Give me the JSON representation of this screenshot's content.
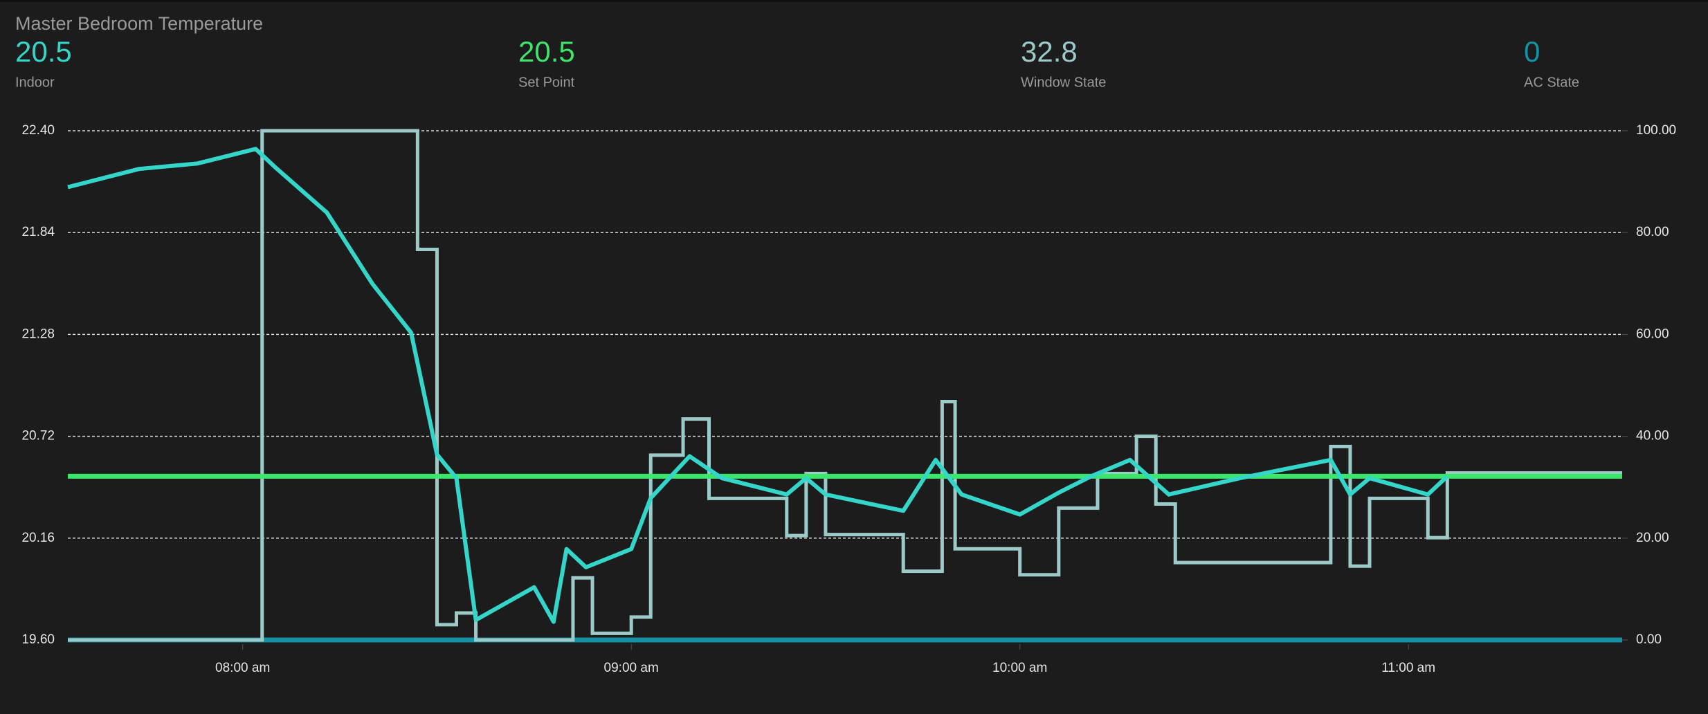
{
  "chart_data": {
    "type": "line",
    "title": "Master Bedroom Temperature",
    "xlim": [
      453,
      693
    ],
    "xticks": [
      {
        "value": 480,
        "label": "08:00 am"
      },
      {
        "value": 540,
        "label": "09:00 am"
      },
      {
        "value": 600,
        "label": "10:00 am"
      },
      {
        "value": 660,
        "label": "11:00 am"
      }
    ],
    "ylim": [
      19.6,
      22.4
    ],
    "yticks": [
      {
        "value": 19.6,
        "label": "19.60"
      },
      {
        "value": 20.16,
        "label": "20.16"
      },
      {
        "value": 20.72,
        "label": "20.72"
      },
      {
        "value": 21.28,
        "label": "21.28"
      },
      {
        "value": 21.84,
        "label": "21.84"
      },
      {
        "value": 22.4,
        "label": "22.40"
      }
    ],
    "y2lim": [
      0,
      100
    ],
    "y2ticks": [
      {
        "value": 0,
        "label": "0.00"
      },
      {
        "value": 20,
        "label": "20.00"
      },
      {
        "value": 40,
        "label": "40.00"
      },
      {
        "value": 60,
        "label": "60.00"
      },
      {
        "value": 80,
        "label": "80.00"
      },
      {
        "value": 100,
        "label": "100.00"
      }
    ],
    "grid": true,
    "series": [
      {
        "name": "Indoor",
        "state": 20.5,
        "color": "#33d6c8",
        "x": [
          453,
          464,
          473,
          482,
          485,
          493,
          500,
          506,
          510,
          513,
          516,
          522,
          525,
          528,
          530,
          533,
          540,
          543,
          549,
          554,
          564,
          567,
          570,
          582,
          587,
          591,
          600,
          606,
          611,
          617,
          623,
          634,
          648,
          651,
          654,
          663,
          666
        ],
        "values": [
          22.09,
          22.19,
          22.22,
          22.3,
          22.2,
          21.95,
          21.56,
          21.29,
          20.62,
          20.49,
          19.71,
          19.83,
          19.89,
          19.7,
          20.1,
          20.0,
          20.1,
          20.38,
          20.61,
          20.49,
          20.4,
          20.49,
          20.4,
          20.31,
          20.59,
          20.4,
          20.29,
          20.41,
          20.5,
          20.59,
          20.4,
          20.49,
          20.59,
          20.4,
          20.49,
          20.4,
          20.5
        ]
      },
      {
        "name": "Set Point",
        "state": 20.5,
        "color": "#3ce66a",
        "x": [
          453,
          693
        ],
        "values": [
          20.5,
          20.5
        ]
      },
      {
        "name": "Window State",
        "state": 32.8,
        "color": "#9ccac8",
        "axis": "y2",
        "step": true,
        "x": [
          453,
          483,
          507,
          510,
          513,
          516,
          531,
          534,
          540,
          543,
          548,
          552,
          564,
          567,
          570,
          582,
          588,
          590,
          600,
          606,
          612,
          618,
          621,
          624,
          648,
          651,
          654,
          663,
          666
        ],
        "values": [
          0,
          100,
          76.7,
          3,
          5.3,
          0,
          12.2,
          1.3,
          4.5,
          36.3,
          43.4,
          27.8,
          20.5,
          32.7,
          20.7,
          13.5,
          46.8,
          17.9,
          12.8,
          25.9,
          32.7,
          40,
          26.7,
          15.2,
          38,
          14.5,
          27.8,
          20.1,
          32.8
        ]
      },
      {
        "name": "AC State",
        "state": 0,
        "color": "#1592a5",
        "axis": "y2",
        "x": [
          453,
          693
        ],
        "values": [
          0,
          0
        ]
      }
    ]
  }
}
